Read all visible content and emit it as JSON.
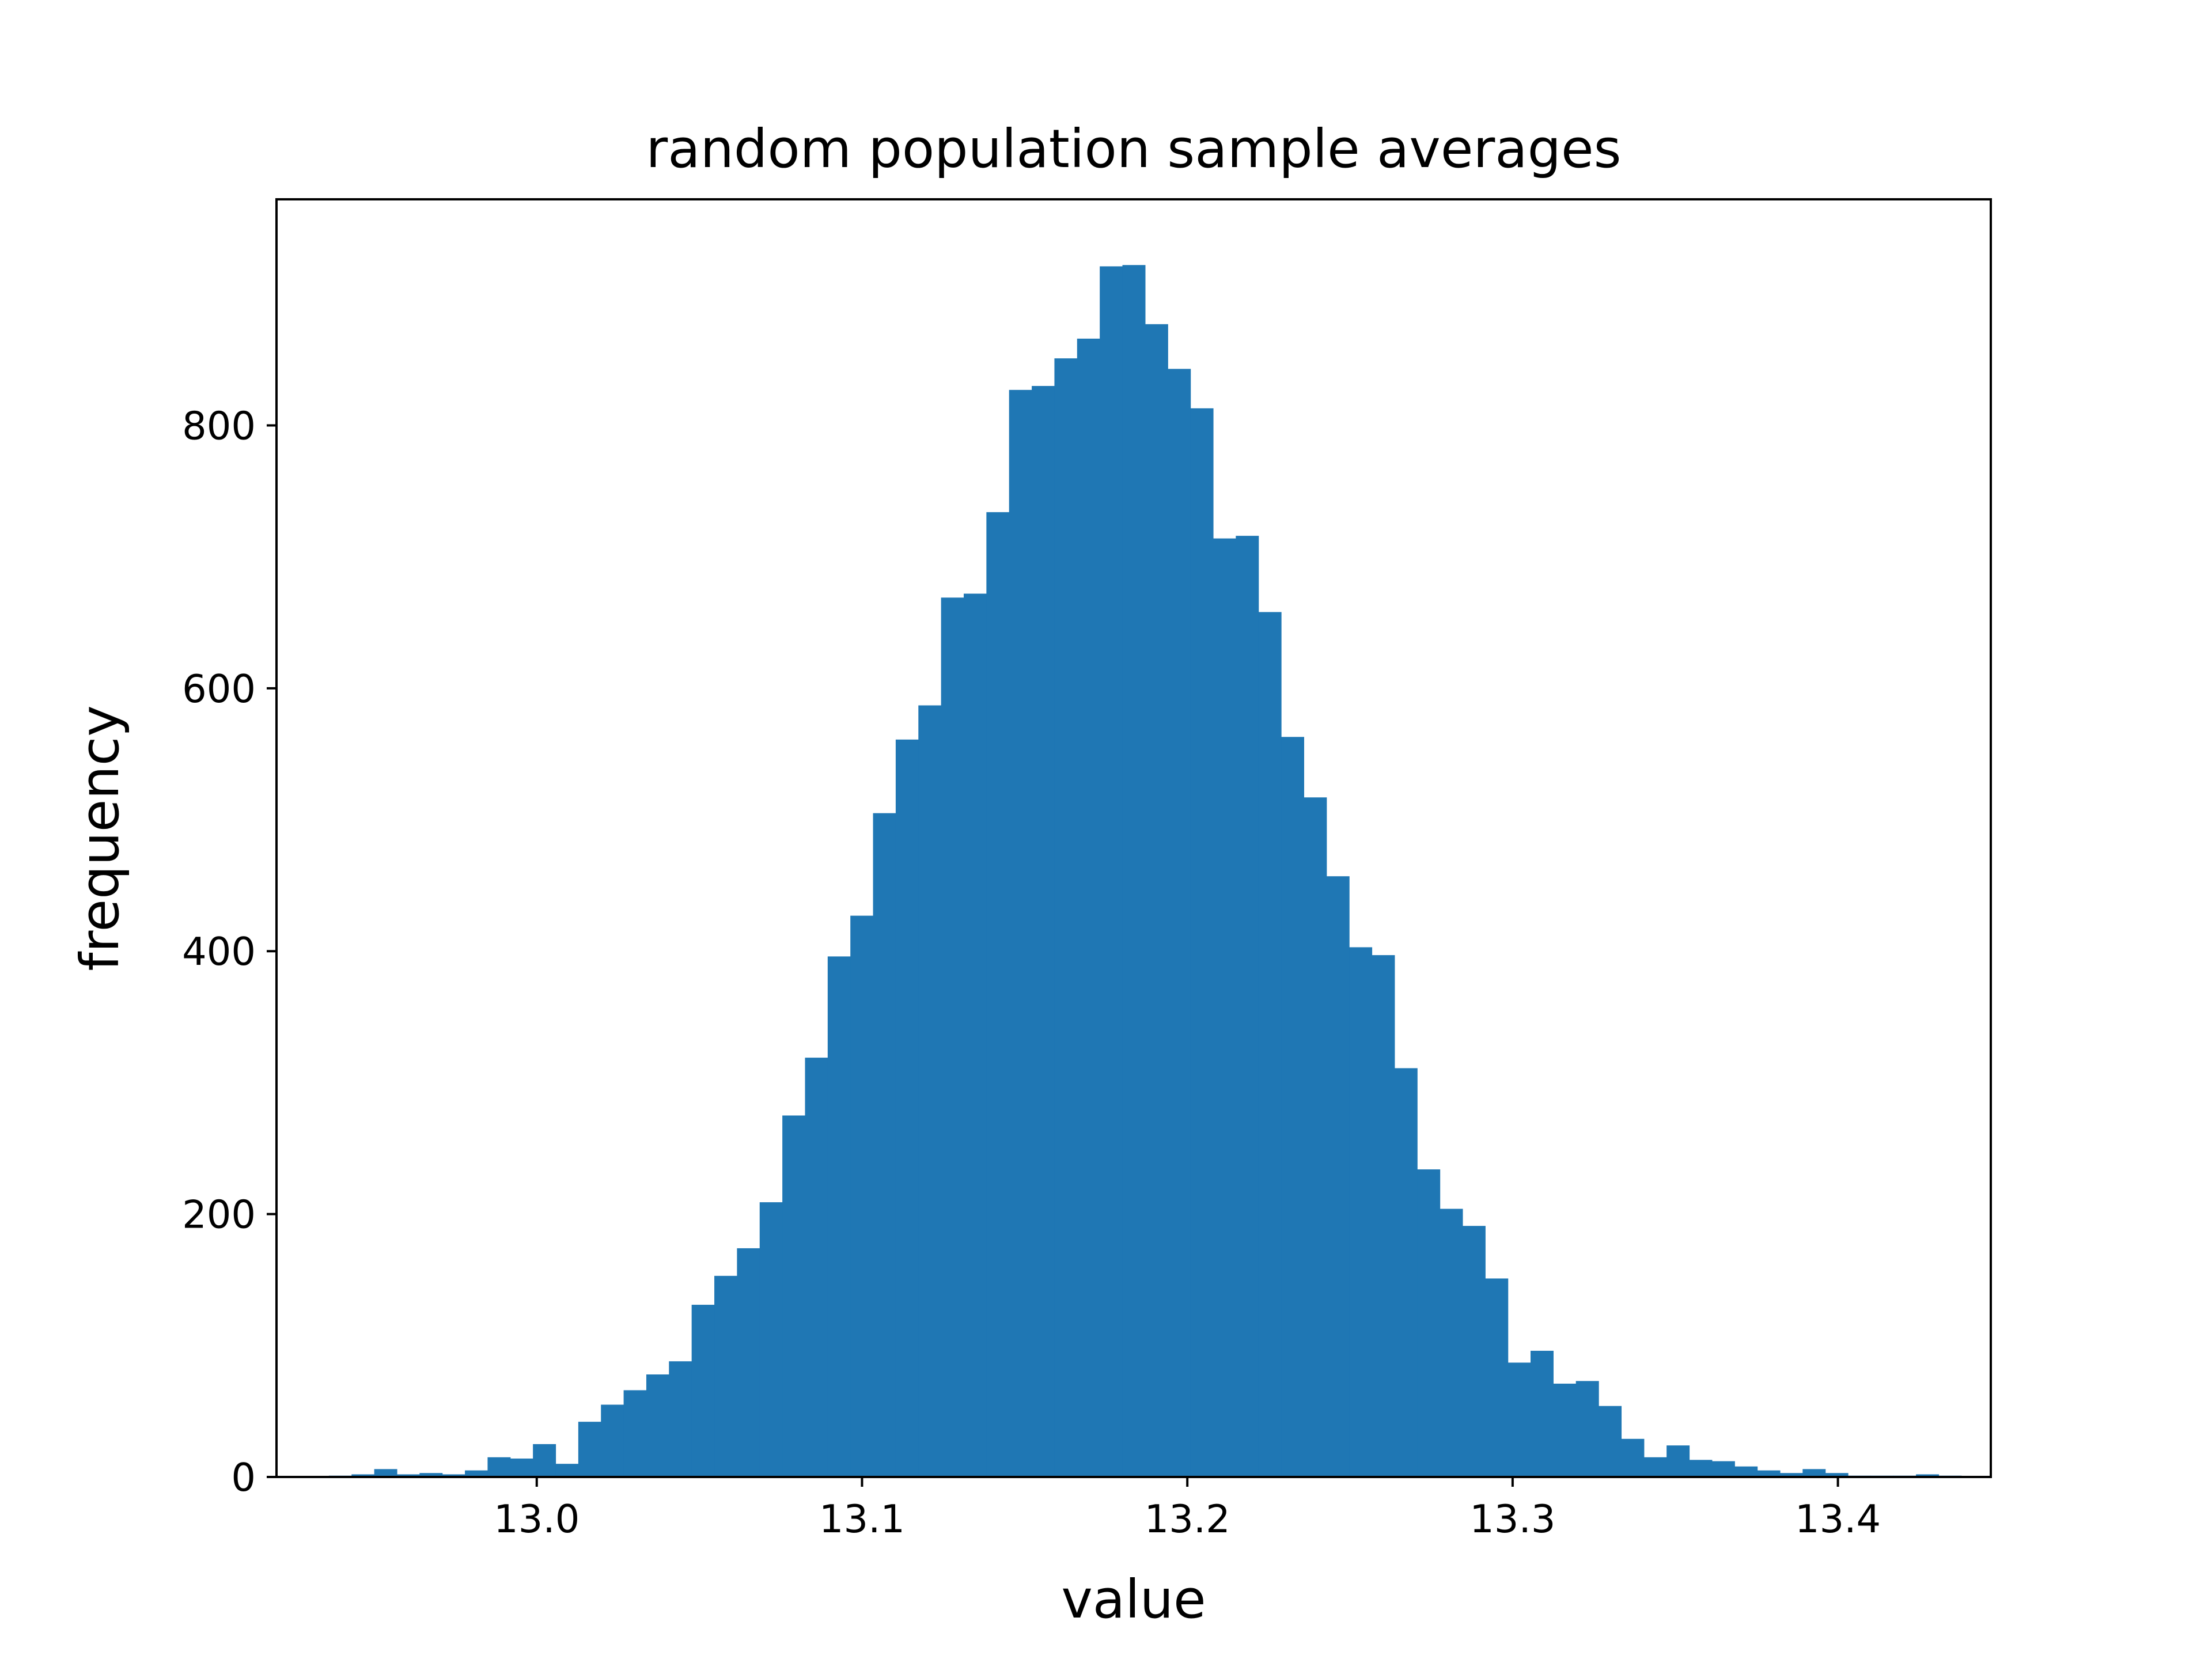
{
  "chart_data": {
    "type": "bar",
    "title": "random population sample averages",
    "xlabel": "value",
    "ylabel": "frequency",
    "xlim": [
      12.92,
      13.447
    ],
    "ylim": [
      0,
      972
    ],
    "xticks": [
      "13.0",
      "13.1",
      "13.2",
      "13.3",
      "13.4"
    ],
    "xtick_values": [
      13.0,
      13.1,
      13.2,
      13.3,
      13.4
    ],
    "yticks": [
      "0",
      "200",
      "400",
      "600",
      "800"
    ],
    "ytick_values": [
      0,
      200,
      400,
      600,
      800
    ],
    "grid": false,
    "bar_color": "#1f77b4",
    "bin_width": 0.00697,
    "bin_edges_start": 12.9361,
    "values": [
      1,
      2,
      6,
      2,
      3,
      2,
      5,
      15,
      14,
      25,
      10,
      42,
      55,
      66,
      78,
      88,
      131,
      153,
      174,
      209,
      275,
      319,
      396,
      427,
      505,
      561,
      587,
      669,
      672,
      734,
      827,
      830,
      851,
      866,
      921,
      922,
      877,
      843,
      813,
      714,
      716,
      658,
      563,
      517,
      457,
      403,
      397,
      311,
      234,
      204,
      191,
      151,
      87,
      96,
      71,
      73,
      54,
      29,
      15,
      24,
      13,
      12,
      8,
      5,
      3,
      6,
      3,
      1,
      1,
      1,
      2,
      1
    ]
  }
}
